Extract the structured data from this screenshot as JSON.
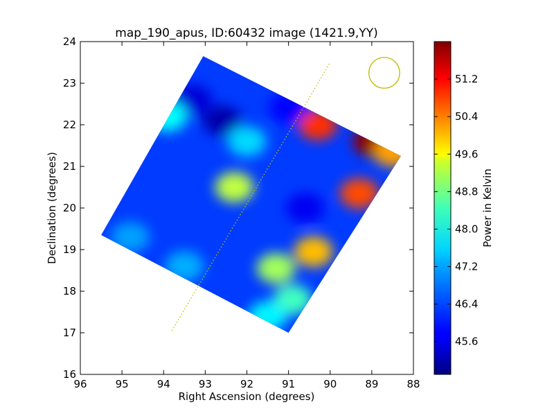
{
  "chart_data": {
    "type": "heatmap",
    "title": "map_190_apus, ID:60432 image (1421.9,YY)",
    "xlabel": "Right Ascension (degrees)",
    "ylabel": "Declination (degrees)",
    "xlim": [
      96,
      88
    ],
    "ylim": [
      16,
      24
    ],
    "x_ticks": [
      "96",
      "95",
      "94",
      "93",
      "92",
      "91",
      "90",
      "89",
      "88"
    ],
    "y_ticks": [
      "16",
      "17",
      "18",
      "19",
      "20",
      "21",
      "22",
      "23",
      "24"
    ],
    "colorbar": {
      "label": "Power in Kelvin",
      "range": [
        44.9,
        52.0
      ],
      "ticks": [
        "45.6",
        "46.4",
        "47.2",
        "48.0",
        "48.8",
        "49.6",
        "50.4",
        "51.2"
      ],
      "colormap": "jet"
    },
    "map_footprint_corners": [
      [
        93.05,
        23.65
      ],
      [
        88.3,
        21.25
      ],
      [
        91.0,
        17.0
      ],
      [
        95.5,
        19.35
      ]
    ],
    "background_level": 46.2,
    "features": [
      {
        "ra": 92.6,
        "dec": 22.1,
        "value": 45.2
      },
      {
        "ra": 93.3,
        "dec": 22.6,
        "value": 45.5
      },
      {
        "ra": 90.3,
        "dec": 22.0,
        "value": 50.8
      },
      {
        "ra": 89.0,
        "dec": 21.6,
        "value": 51.9
      },
      {
        "ra": 88.5,
        "dec": 21.35,
        "value": 50.0
      },
      {
        "ra": 89.3,
        "dec": 20.35,
        "value": 50.6
      },
      {
        "ra": 92.3,
        "dec": 20.5,
        "value": 48.9
      },
      {
        "ra": 90.4,
        "dec": 18.95,
        "value": 49.8
      },
      {
        "ra": 91.3,
        "dec": 18.55,
        "value": 48.7
      },
      {
        "ra": 90.9,
        "dec": 17.8,
        "value": 48.0
      },
      {
        "ra": 91.5,
        "dec": 17.4,
        "value": 47.5
      },
      {
        "ra": 93.5,
        "dec": 18.6,
        "value": 47.0
      },
      {
        "ra": 94.8,
        "dec": 19.3,
        "value": 46.9
      },
      {
        "ra": 93.9,
        "dec": 22.2,
        "value": 47.6
      },
      {
        "ra": 91.0,
        "dec": 22.4,
        "value": 45.8
      },
      {
        "ra": 90.6,
        "dec": 20.0,
        "value": 45.7
      },
      {
        "ra": 92.0,
        "dec": 21.6,
        "value": 47.3
      }
    ],
    "dotted_line": [
      [
        93.8,
        17.05
      ],
      [
        90.0,
        23.5
      ]
    ],
    "beam_circle": {
      "ra": 88.7,
      "dec": 23.25,
      "radius_deg": 0.37
    },
    "annotation_color": "#bfbf00"
  }
}
